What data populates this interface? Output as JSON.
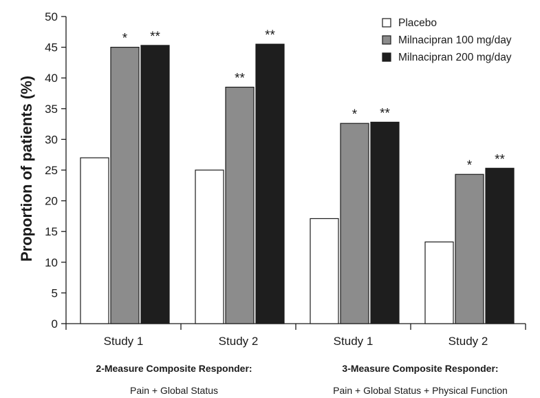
{
  "chart_data": {
    "type": "bar",
    "title": "",
    "ylabel": "Proportion of patients (%)",
    "xlabel": "",
    "ylim": [
      0,
      50
    ],
    "yticks": [
      0,
      5,
      10,
      15,
      20,
      25,
      30,
      35,
      40,
      45,
      50
    ],
    "grid": false,
    "legend_position": "top-right",
    "categories": [
      "Study 1",
      "Study 2",
      "Study 1",
      "Study 2"
    ],
    "groups": [
      {
        "title": "2-Measure Composite Responder:",
        "subtitle": "Pain + Global Status",
        "categories": [
          0,
          1
        ]
      },
      {
        "title": "3-Measure Composite Responder:",
        "subtitle": "Pain + Global Status + Physical Function",
        "categories": [
          2,
          3
        ]
      }
    ],
    "series": [
      {
        "name": "Placebo",
        "color": "#ffffff",
        "values": [
          27.0,
          25.0,
          17.1,
          13.3
        ],
        "significance": [
          "",
          "",
          "",
          ""
        ]
      },
      {
        "name": "Milnacipran 100 mg/day",
        "color": "#8c8c8c",
        "values": [
          45.0,
          38.5,
          32.6,
          24.3
        ],
        "significance": [
          "*",
          "**",
          "*",
          "*"
        ]
      },
      {
        "name": "Milnacipran 200 mg/day",
        "color": "#1e1e1e",
        "values": [
          45.3,
          45.5,
          32.8,
          25.3
        ],
        "significance": [
          "**",
          "**",
          "**",
          "**"
        ]
      }
    ]
  }
}
